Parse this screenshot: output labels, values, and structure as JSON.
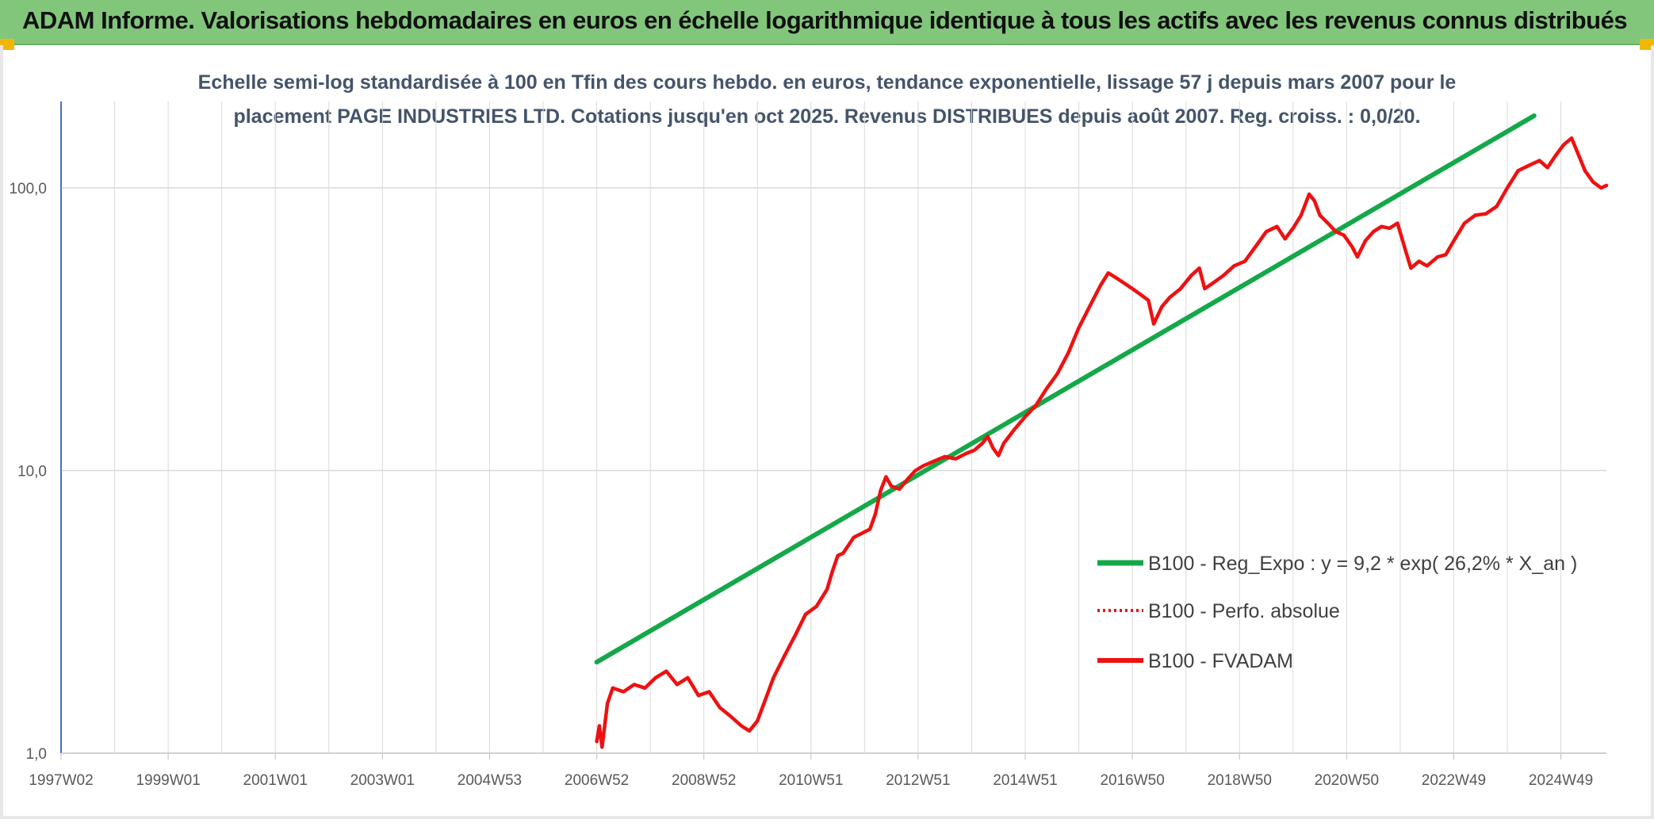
{
  "banner": {
    "title": "ADAM Informe. Valorisations hebdomadaires en euros en échelle logarithmique identique à tous les actifs avec les revenus connus distribués"
  },
  "colors": {
    "banner_bg": "#82c67c",
    "trend": "#14a84a",
    "fvadam": "#ee1111",
    "subtitle": "#44546a"
  },
  "chart_data": {
    "type": "line",
    "subtitle_lines": [
      "Echelle semi-log standardisée à 100 en Tfin des cours hebdo. en euros, tendance exponentielle, lissage 57 j depuis mars 2007 pour le",
      "placement PAGE INDUSTRIES LTD. Cotations jusqu'en oct 2025. Revenus DISTRIBUES depuis août 2007. Reg. croiss. : 0,0/20."
    ],
    "y_scale": "log",
    "ylim": [
      1,
      180
    ],
    "y_ticks": [
      {
        "label": "100,0",
        "value": 100
      },
      {
        "label": "10,0",
        "value": 10
      },
      {
        "label": "1,0",
        "value": 1
      }
    ],
    "xlim": [
      1997.0,
      2025.85
    ],
    "x_ticks": [
      {
        "label": "1997W02",
        "value": 1997.0
      },
      {
        "label": "1999W01",
        "value": 1999.0
      },
      {
        "label": "2001W01",
        "value": 2001.0
      },
      {
        "label": "2003W01",
        "value": 2003.0
      },
      {
        "label": "2004W53",
        "value": 2005.0
      },
      {
        "label": "2006W52",
        "value": 2007.0
      },
      {
        "label": "2008W52",
        "value": 2009.0
      },
      {
        "label": "2010W51",
        "value": 2011.0
      },
      {
        "label": "2012W51",
        "value": 2013.0
      },
      {
        "label": "2014W51",
        "value": 2015.0
      },
      {
        "label": "2016W50",
        "value": 2017.0
      },
      {
        "label": "2018W50",
        "value": 2019.0
      },
      {
        "label": "2020W50",
        "value": 2021.0
      },
      {
        "label": "2022W49",
        "value": 2023.0
      },
      {
        "label": "2024W49",
        "value": 2025.0
      }
    ],
    "grid": true,
    "legend_position": "right",
    "series": [
      {
        "name": "B100 - Reg_Expo : y = 9,2 * exp( 26,2% *  X_an )",
        "style": "solid-thick",
        "color": "#14a84a",
        "points": [
          [
            2007.0,
            2.1
          ],
          [
            2024.5,
            180
          ]
        ]
      },
      {
        "name": "B100 - Perfo. absolue",
        "style": "dotted",
        "color": "#ee1111",
        "points": []
      },
      {
        "name": "B100 - FVADAM",
        "style": "solid",
        "color": "#ee1111",
        "points": [
          [
            2007.0,
            1.1
          ],
          [
            2007.05,
            1.25
          ],
          [
            2007.1,
            1.05
          ],
          [
            2007.2,
            1.5
          ],
          [
            2007.3,
            1.7
          ],
          [
            2007.5,
            1.65
          ],
          [
            2007.7,
            1.75
          ],
          [
            2007.9,
            1.7
          ],
          [
            2008.1,
            1.85
          ],
          [
            2008.3,
            1.95
          ],
          [
            2008.5,
            1.75
          ],
          [
            2008.7,
            1.85
          ],
          [
            2008.9,
            1.6
          ],
          [
            2009.1,
            1.65
          ],
          [
            2009.3,
            1.45
          ],
          [
            2009.5,
            1.35
          ],
          [
            2009.7,
            1.25
          ],
          [
            2009.85,
            1.2
          ],
          [
            2010.0,
            1.3
          ],
          [
            2010.15,
            1.55
          ],
          [
            2010.3,
            1.85
          ],
          [
            2010.5,
            2.2
          ],
          [
            2010.7,
            2.6
          ],
          [
            2010.9,
            3.1
          ],
          [
            2011.1,
            3.3
          ],
          [
            2011.3,
            3.8
          ],
          [
            2011.4,
            4.4
          ],
          [
            2011.5,
            5.0
          ],
          [
            2011.6,
            5.1
          ],
          [
            2011.8,
            5.8
          ],
          [
            2011.95,
            6.0
          ],
          [
            2012.1,
            6.2
          ],
          [
            2012.2,
            7.0
          ],
          [
            2012.3,
            8.5
          ],
          [
            2012.4,
            9.5
          ],
          [
            2012.5,
            8.8
          ],
          [
            2012.65,
            8.6
          ],
          [
            2012.8,
            9.3
          ],
          [
            2012.95,
            10.0
          ],
          [
            2013.1,
            10.4
          ],
          [
            2013.3,
            10.8
          ],
          [
            2013.5,
            11.2
          ],
          [
            2013.7,
            11.0
          ],
          [
            2013.9,
            11.5
          ],
          [
            2014.05,
            11.8
          ],
          [
            2014.2,
            12.5
          ],
          [
            2014.3,
            13.2
          ],
          [
            2014.4,
            12.0
          ],
          [
            2014.5,
            11.3
          ],
          [
            2014.6,
            12.5
          ],
          [
            2014.8,
            14.0
          ],
          [
            2015.0,
            15.5
          ],
          [
            2015.2,
            17.0
          ],
          [
            2015.4,
            19.5
          ],
          [
            2015.6,
            22.0
          ],
          [
            2015.8,
            26.0
          ],
          [
            2016.0,
            32.0
          ],
          [
            2016.2,
            38.0
          ],
          [
            2016.4,
            45.0
          ],
          [
            2016.55,
            50.0
          ],
          [
            2016.7,
            48.0
          ],
          [
            2016.85,
            46.0
          ],
          [
            2017.0,
            44.0
          ],
          [
            2017.15,
            42.0
          ],
          [
            2017.3,
            40.0
          ],
          [
            2017.4,
            33.0
          ],
          [
            2017.55,
            38.0
          ],
          [
            2017.7,
            41.0
          ],
          [
            2017.9,
            44.0
          ],
          [
            2018.1,
            49.0
          ],
          [
            2018.25,
            52.0
          ],
          [
            2018.35,
            44.0
          ],
          [
            2018.5,
            46.0
          ],
          [
            2018.7,
            49.0
          ],
          [
            2018.9,
            53.0
          ],
          [
            2019.1,
            55.0
          ],
          [
            2019.3,
            62.0
          ],
          [
            2019.5,
            70.0
          ],
          [
            2019.7,
            73.0
          ],
          [
            2019.85,
            66.0
          ],
          [
            2020.0,
            72.0
          ],
          [
            2020.15,
            80.0
          ],
          [
            2020.3,
            95.0
          ],
          [
            2020.4,
            90.0
          ],
          [
            2020.5,
            80.0
          ],
          [
            2020.65,
            75.0
          ],
          [
            2020.8,
            70.0
          ],
          [
            2020.95,
            68.0
          ],
          [
            2021.1,
            62.0
          ],
          [
            2021.2,
            57.0
          ],
          [
            2021.35,
            65.0
          ],
          [
            2021.5,
            70.0
          ],
          [
            2021.65,
            73.0
          ],
          [
            2021.8,
            72.0
          ],
          [
            2021.95,
            75.0
          ],
          [
            2022.1,
            60.0
          ],
          [
            2022.2,
            52.0
          ],
          [
            2022.35,
            55.0
          ],
          [
            2022.5,
            53.0
          ],
          [
            2022.7,
            57.0
          ],
          [
            2022.85,
            58.0
          ],
          [
            2023.0,
            65.0
          ],
          [
            2023.2,
            75.0
          ],
          [
            2023.4,
            80.0
          ],
          [
            2023.6,
            81.0
          ],
          [
            2023.8,
            86.0
          ],
          [
            2024.0,
            100.0
          ],
          [
            2024.2,
            115.0
          ],
          [
            2024.4,
            120.0
          ],
          [
            2024.6,
            125.0
          ],
          [
            2024.75,
            118.0
          ],
          [
            2024.9,
            130.0
          ],
          [
            2025.05,
            142.0
          ],
          [
            2025.2,
            150.0
          ],
          [
            2025.3,
            135.0
          ],
          [
            2025.45,
            115.0
          ],
          [
            2025.6,
            105.0
          ],
          [
            2025.75,
            100.0
          ],
          [
            2025.85,
            102.0
          ]
        ]
      }
    ]
  }
}
